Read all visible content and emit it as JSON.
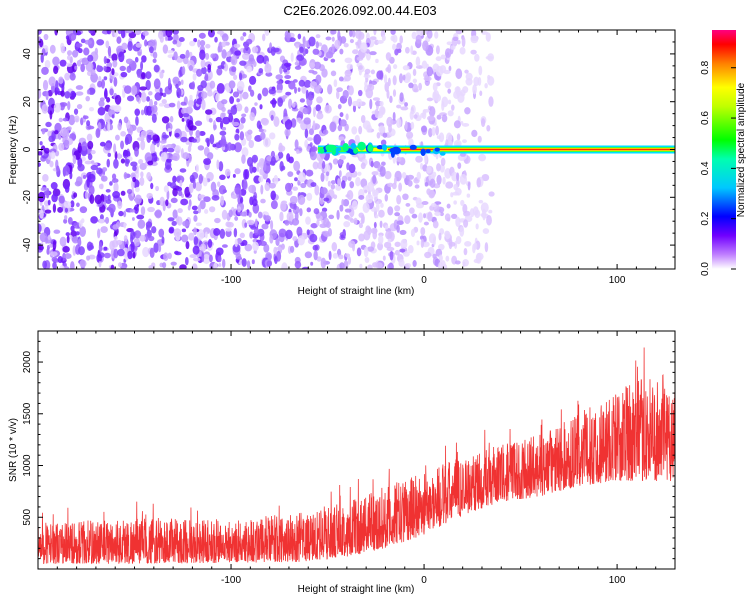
{
  "title": "C2E6.2026.092.00.44.E03",
  "chart_data": [
    {
      "type": "heatmap",
      "name": "spectrogram",
      "xlabel": "Height of straight line (km)",
      "ylabel": "Frequency (Hz)",
      "xlim": [
        -200,
        130
      ],
      "ylim": [
        -50,
        50
      ],
      "xticks": [
        -100,
        0,
        100
      ],
      "yticks": [
        -40,
        -20,
        0,
        20,
        40
      ],
      "colorbar": {
        "label": "Normalized spectral amplitude",
        "range": [
          0,
          0.95
        ],
        "ticks": [
          0.0,
          0.2,
          0.4,
          0.6,
          0.8
        ],
        "colormap": [
          "#ffffff",
          "#7000ff",
          "#0000ff",
          "#00ffff",
          "#00ff00",
          "#ffff00",
          "#ff8000",
          "#ff0000",
          "#ff0080"
        ]
      },
      "features": {
        "noise_region_km": [
          -200,
          10
        ],
        "carrier_line_hz": 0,
        "carrier_start_km": -55
      }
    },
    {
      "type": "line",
      "name": "snr",
      "xlabel": "Height of straight line (km)",
      "ylabel": "SNR (10 * v/v)",
      "xlim": [
        -200,
        130
      ],
      "ylim": [
        0,
        2300
      ],
      "xticks": [
        -100,
        0,
        100
      ],
      "yticks": [
        500,
        1000,
        1500,
        2000
      ],
      "color": "#f03232",
      "envelope": {
        "x": [
          -200,
          -150,
          -100,
          -60,
          -40,
          -20,
          0,
          20,
          40,
          60,
          80,
          100,
          115,
          130
        ],
        "low": [
          50,
          50,
          60,
          70,
          120,
          200,
          330,
          520,
          650,
          700,
          800,
          850,
          850,
          850
        ],
        "high": [
          450,
          500,
          480,
          550,
          650,
          800,
          950,
          1100,
          1200,
          1300,
          1500,
          1750,
          1850,
          1900
        ]
      }
    }
  ]
}
